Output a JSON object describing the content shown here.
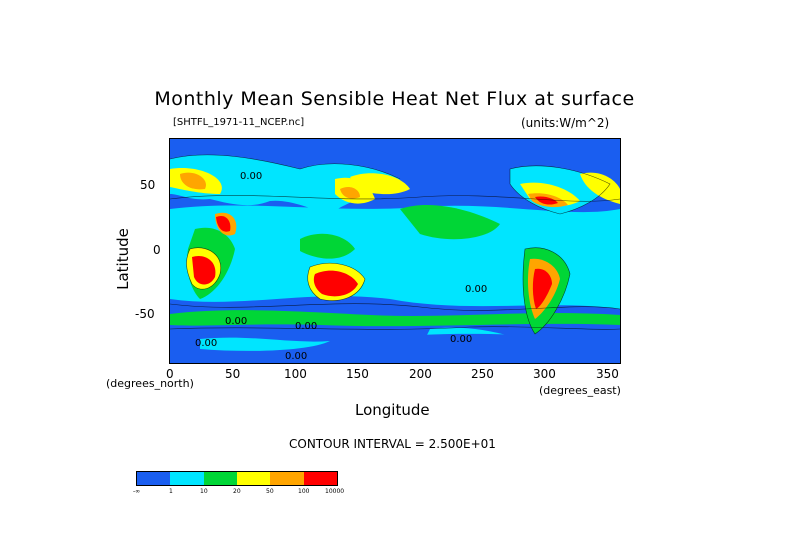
{
  "title": "Monthly Mean Sensible Heat Net Flux at surface",
  "file_label": "[SHTFL_1971-11_NCEP.nc]",
  "units_label": "(units:W/m^2)",
  "axes": {
    "ylabel": "Latitude",
    "xlabel": "Longitude",
    "x_unit": "(degrees_north)",
    "y_unit": "(degrees_east)",
    "x_ticks": [
      "0",
      "50",
      "100",
      "150",
      "200",
      "250",
      "300",
      "350"
    ],
    "y_ticks": [
      "50",
      "0",
      "-50"
    ]
  },
  "contour_label": "CONTOUR INTERVAL = 2.500E+01",
  "map_labels": [
    "0.00",
    "0.00",
    "0.00",
    "0.00",
    "0.00",
    "0.00",
    "0.00"
  ],
  "legend": {
    "colors": [
      "#1a5ef0",
      "#00e5ff",
      "#00d636",
      "#ffff00",
      "#ffa500",
      "#ff0000"
    ],
    "labels": [
      "-∞",
      "1",
      "10",
      "20",
      "50",
      "100",
      "10000"
    ]
  }
}
